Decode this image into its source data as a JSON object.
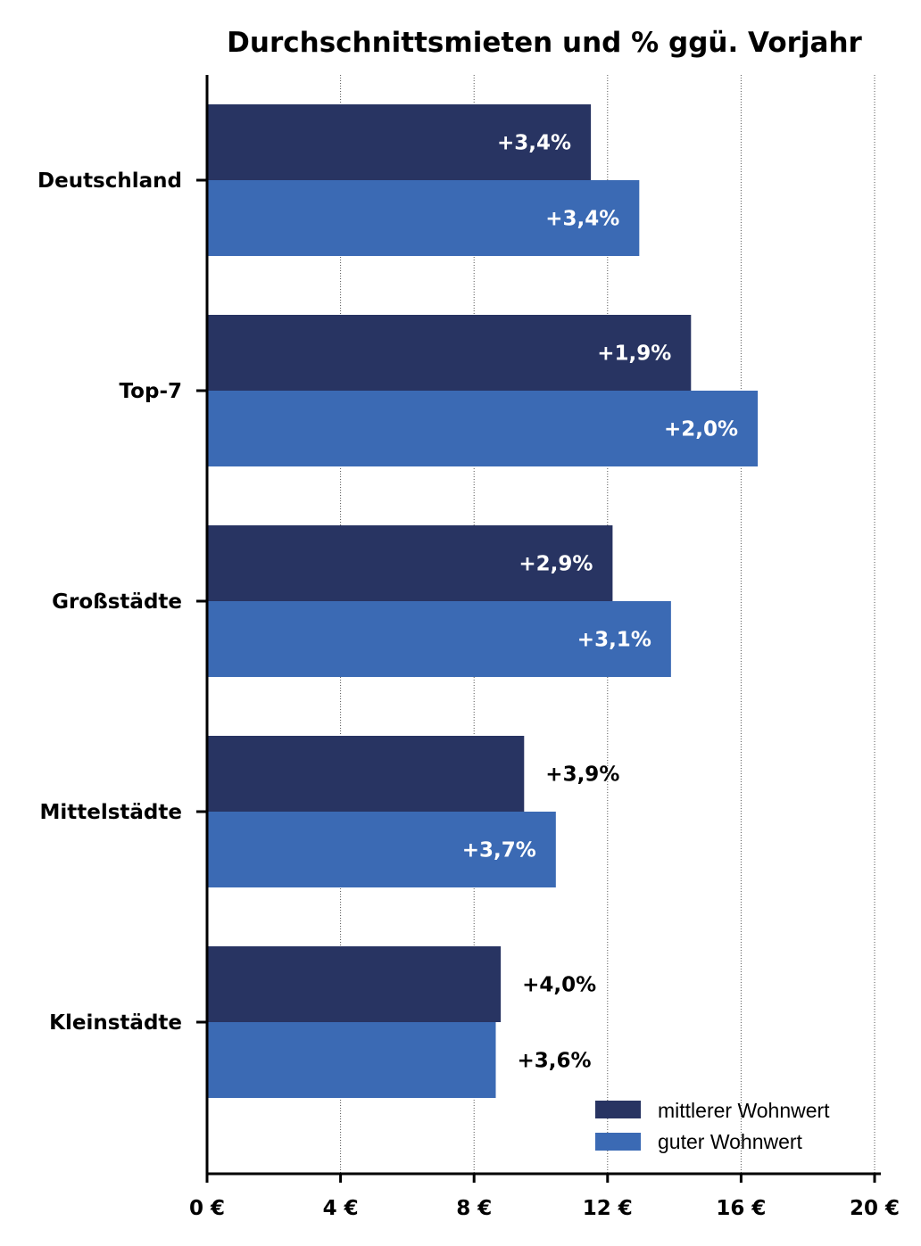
{
  "chart_data": {
    "type": "bar",
    "orientation": "horizontal",
    "title": "Durchschnittsmieten und % ggü. Vorjahr",
    "categories": [
      "Deutschland",
      "Top-7",
      "Großstädte",
      "Mittelstädte",
      "Kleinstädte"
    ],
    "series": [
      {
        "name": "mittlerer Wohnwert",
        "color": "#283462",
        "values": [
          11.5,
          14.5,
          12.15,
          9.5,
          8.8
        ],
        "labels": [
          "+3,4%",
          "+1,9%",
          "+2,9%",
          "+3,9%",
          "+4,0%"
        ],
        "label_inside": [
          true,
          true,
          true,
          false,
          false
        ]
      },
      {
        "name": "guter Wohnwert",
        "color": "#3b6ab4",
        "values": [
          12.95,
          16.5,
          13.9,
          10.45,
          8.65
        ],
        "labels": [
          "+3,4%",
          "+2,0%",
          "+3,1%",
          "+3,7%",
          "+3,6%"
        ],
        "label_inside": [
          true,
          true,
          true,
          true,
          false
        ]
      }
    ],
    "xlim": [
      0,
      20
    ],
    "xticks": [
      0,
      4,
      8,
      12,
      16,
      20
    ],
    "xtick_labels": [
      "0 €",
      "4 €",
      "8 €",
      "12 €",
      "16 €",
      "20 €"
    ],
    "xlabel": "",
    "ylabel": "",
    "grid": "vertical dotted",
    "legend_position": "bottom-right"
  }
}
